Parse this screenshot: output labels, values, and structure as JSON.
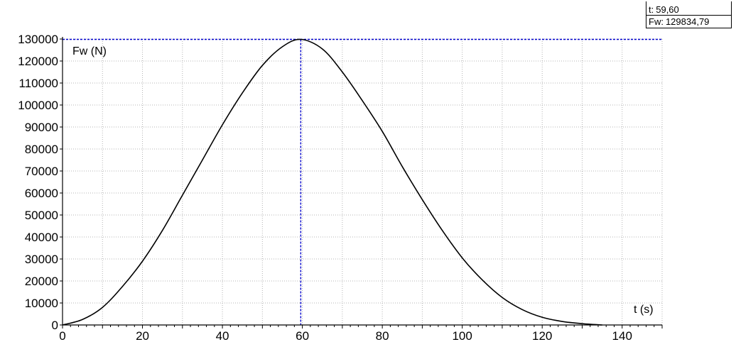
{
  "readout": {
    "t_label": "t:",
    "t_value": "59,60",
    "fw_label": "Fw:",
    "fw_value": "129834,79"
  },
  "colors": {
    "curve": "#000000",
    "grid": "#b4b4b4",
    "crosshair": "#0000cc",
    "axis": "#000000"
  },
  "chart_data": {
    "type": "line",
    "ylabel": "Fw (N)",
    "xlabel": "t (s)",
    "xlim": [
      0,
      150
    ],
    "ylim": [
      0,
      130000
    ],
    "x_ticks": [
      0,
      20,
      40,
      60,
      80,
      100,
      120,
      140
    ],
    "y_ticks": [
      0,
      10000,
      20000,
      30000,
      40000,
      50000,
      60000,
      70000,
      80000,
      90000,
      100000,
      110000,
      120000,
      130000
    ],
    "grid": true,
    "crosshair": {
      "x": 59.6,
      "y": 129834.79
    },
    "series": [
      {
        "x": [
          0,
          5,
          10,
          15,
          20,
          25,
          30,
          35,
          40,
          45,
          50,
          55,
          59.6,
          65,
          70,
          75,
          80,
          85,
          90,
          95,
          100,
          105,
          110,
          115,
          120,
          125,
          130,
          135
        ],
        "values": [
          0,
          2500,
          8000,
          17500,
          29000,
          43000,
          59000,
          75000,
          91000,
          105500,
          118000,
          126500,
          129834.79,
          125500,
          115000,
          102000,
          88000,
          72000,
          57000,
          43000,
          30500,
          20500,
          12500,
          7000,
          3500,
          1600,
          600,
          0
        ]
      }
    ]
  }
}
